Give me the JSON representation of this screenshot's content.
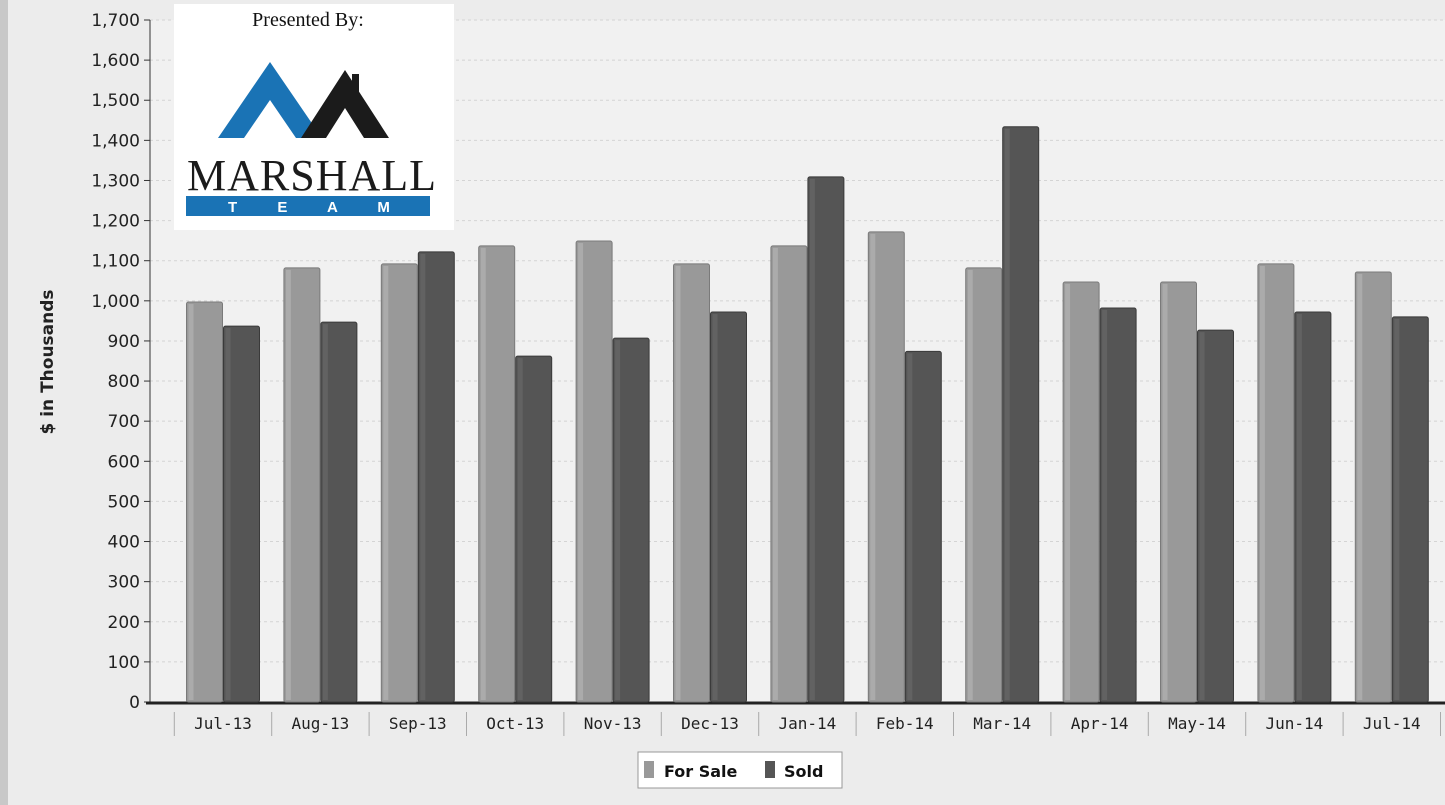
{
  "chart_data": {
    "type": "bar",
    "ylabel": "$ in Thousands",
    "xlabel": "",
    "ylim": [
      0,
      1700
    ],
    "yticks": [
      0,
      100,
      200,
      300,
      400,
      500,
      600,
      700,
      800,
      900,
      1000,
      1100,
      1200,
      1300,
      1400,
      1500,
      1600,
      1700
    ],
    "ytick_labels": [
      "0",
      "100",
      "200",
      "300",
      "400",
      "500",
      "600",
      "700",
      "800",
      "900",
      "1,000",
      "1,100",
      "1,200",
      "1,300",
      "1,400",
      "1,500",
      "1,600",
      "1,700"
    ],
    "grid": true,
    "legend_position": "bottom-center",
    "categories": [
      "Jul-13",
      "Aug-13",
      "Sep-13",
      "Oct-13",
      "Nov-13",
      "Dec-13",
      "Jan-14",
      "Feb-14",
      "Mar-14",
      "Apr-14",
      "May-14",
      "Jun-14",
      "Jul-14"
    ],
    "series": [
      {
        "name": "For Sale",
        "color": "#999999",
        "values": [
          997,
          1082,
          1092,
          1137,
          1149,
          1092,
          1137,
          1172,
          1082,
          1047,
          1047,
          1092,
          1072
        ]
      },
      {
        "name": "Sold",
        "color": "#555555",
        "values": [
          937,
          947,
          1122,
          862,
          907,
          972,
          1309,
          874,
          1434,
          982,
          927,
          972,
          960
        ]
      }
    ]
  },
  "logo": {
    "caption": "Presented By:",
    "word": "MARSHALL",
    "tagline": "T E A M",
    "blue": "#1a73b5",
    "dark": "#1b1b1b"
  }
}
